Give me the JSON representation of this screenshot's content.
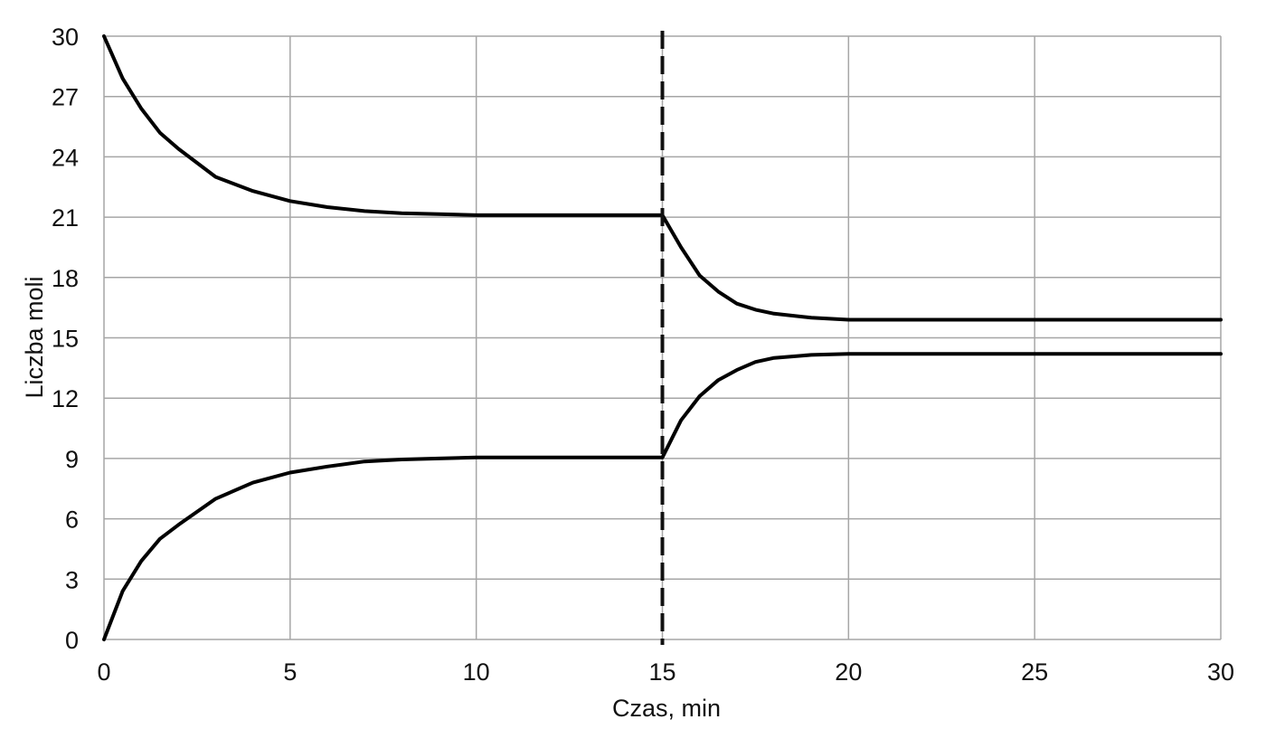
{
  "chart_data": {
    "type": "line",
    "title": "",
    "xlabel": "Czas, min",
    "ylabel": "Liczba moli",
    "xlim": [
      0,
      30
    ],
    "ylim": [
      0,
      30
    ],
    "x_ticks": [
      0,
      5,
      10,
      15,
      20,
      25,
      30
    ],
    "y_ticks": [
      0,
      3,
      6,
      9,
      12,
      15,
      18,
      21,
      24,
      27,
      30
    ],
    "grid": true,
    "legend": "none",
    "series": [
      {
        "color": "#000000",
        "x": [
          0,
          0.5,
          1,
          1.5,
          2,
          3,
          4,
          5,
          6,
          7,
          8,
          9,
          10,
          12,
          14,
          15,
          15.5,
          16,
          16.5,
          17,
          17.5,
          18,
          19,
          20,
          25,
          30
        ],
        "y": [
          30,
          27.9,
          26.4,
          25.2,
          24.4,
          23.0,
          22.3,
          21.8,
          21.5,
          21.3,
          21.2,
          21.15,
          21.1,
          21.1,
          21.1,
          21.1,
          19.5,
          18.1,
          17.3,
          16.7,
          16.4,
          16.2,
          16.0,
          15.9,
          15.9,
          15.9
        ]
      },
      {
        "color": "#000000",
        "x": [
          0,
          0.5,
          1,
          1.5,
          2,
          3,
          4,
          5,
          6,
          7,
          8,
          9,
          10,
          12,
          14,
          15,
          15.5,
          16,
          16.5,
          17,
          17.5,
          18,
          19,
          20,
          25,
          30
        ],
        "y": [
          0,
          2.4,
          3.9,
          5.0,
          5.7,
          7.0,
          7.8,
          8.3,
          8.6,
          8.85,
          8.95,
          9.0,
          9.05,
          9.05,
          9.05,
          9.05,
          10.9,
          12.1,
          12.9,
          13.4,
          13.8,
          14.0,
          14.15,
          14.2,
          14.2,
          14.2
        ]
      }
    ],
    "vertical_marker": {
      "x": 15,
      "style": "dashed",
      "color": "#111111"
    }
  }
}
